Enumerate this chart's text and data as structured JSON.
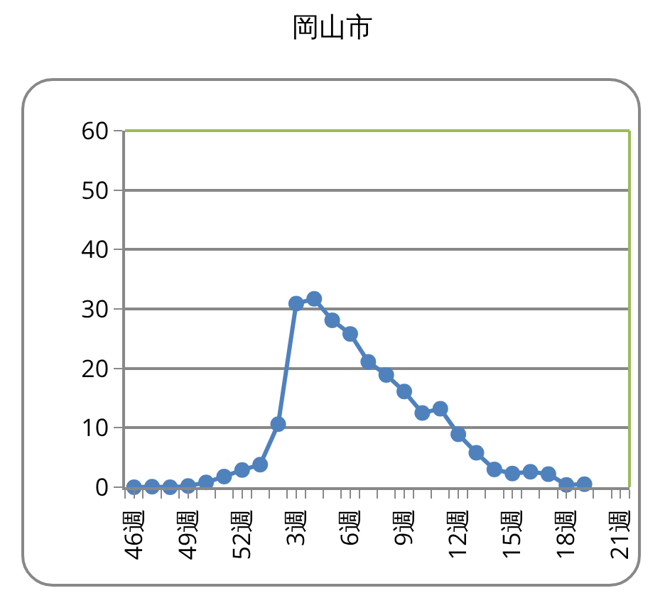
{
  "chart_data": {
    "type": "line",
    "title": "岡山市",
    "categories": [
      "46週",
      null,
      null,
      "49週",
      null,
      null,
      "52週",
      null,
      null,
      "3週",
      null,
      null,
      "6週",
      null,
      null,
      "9週",
      null,
      null,
      "12週",
      null,
      null,
      "15週",
      null,
      null,
      "18週",
      null,
      null,
      "21週"
    ],
    "series": [
      {
        "color": "#4f81bd",
        "values": [
          0,
          0.1,
          0,
          0.2,
          0.8,
          1.8,
          2.9,
          3.8,
          10.6,
          30.9,
          31.7,
          28.1,
          25.8,
          21.1,
          18.9,
          16.1,
          12.5,
          13.2,
          8.9,
          5.8,
          3.0,
          2.3,
          2.6,
          2.2,
          0.4,
          0.5,
          null,
          null
        ]
      }
    ],
    "ylim": [
      0,
      60
    ],
    "yticks": [
      0,
      10,
      20,
      30,
      40,
      50,
      60
    ],
    "grid": "y",
    "legend": false,
    "marker": "circle",
    "line_style": "solid"
  }
}
